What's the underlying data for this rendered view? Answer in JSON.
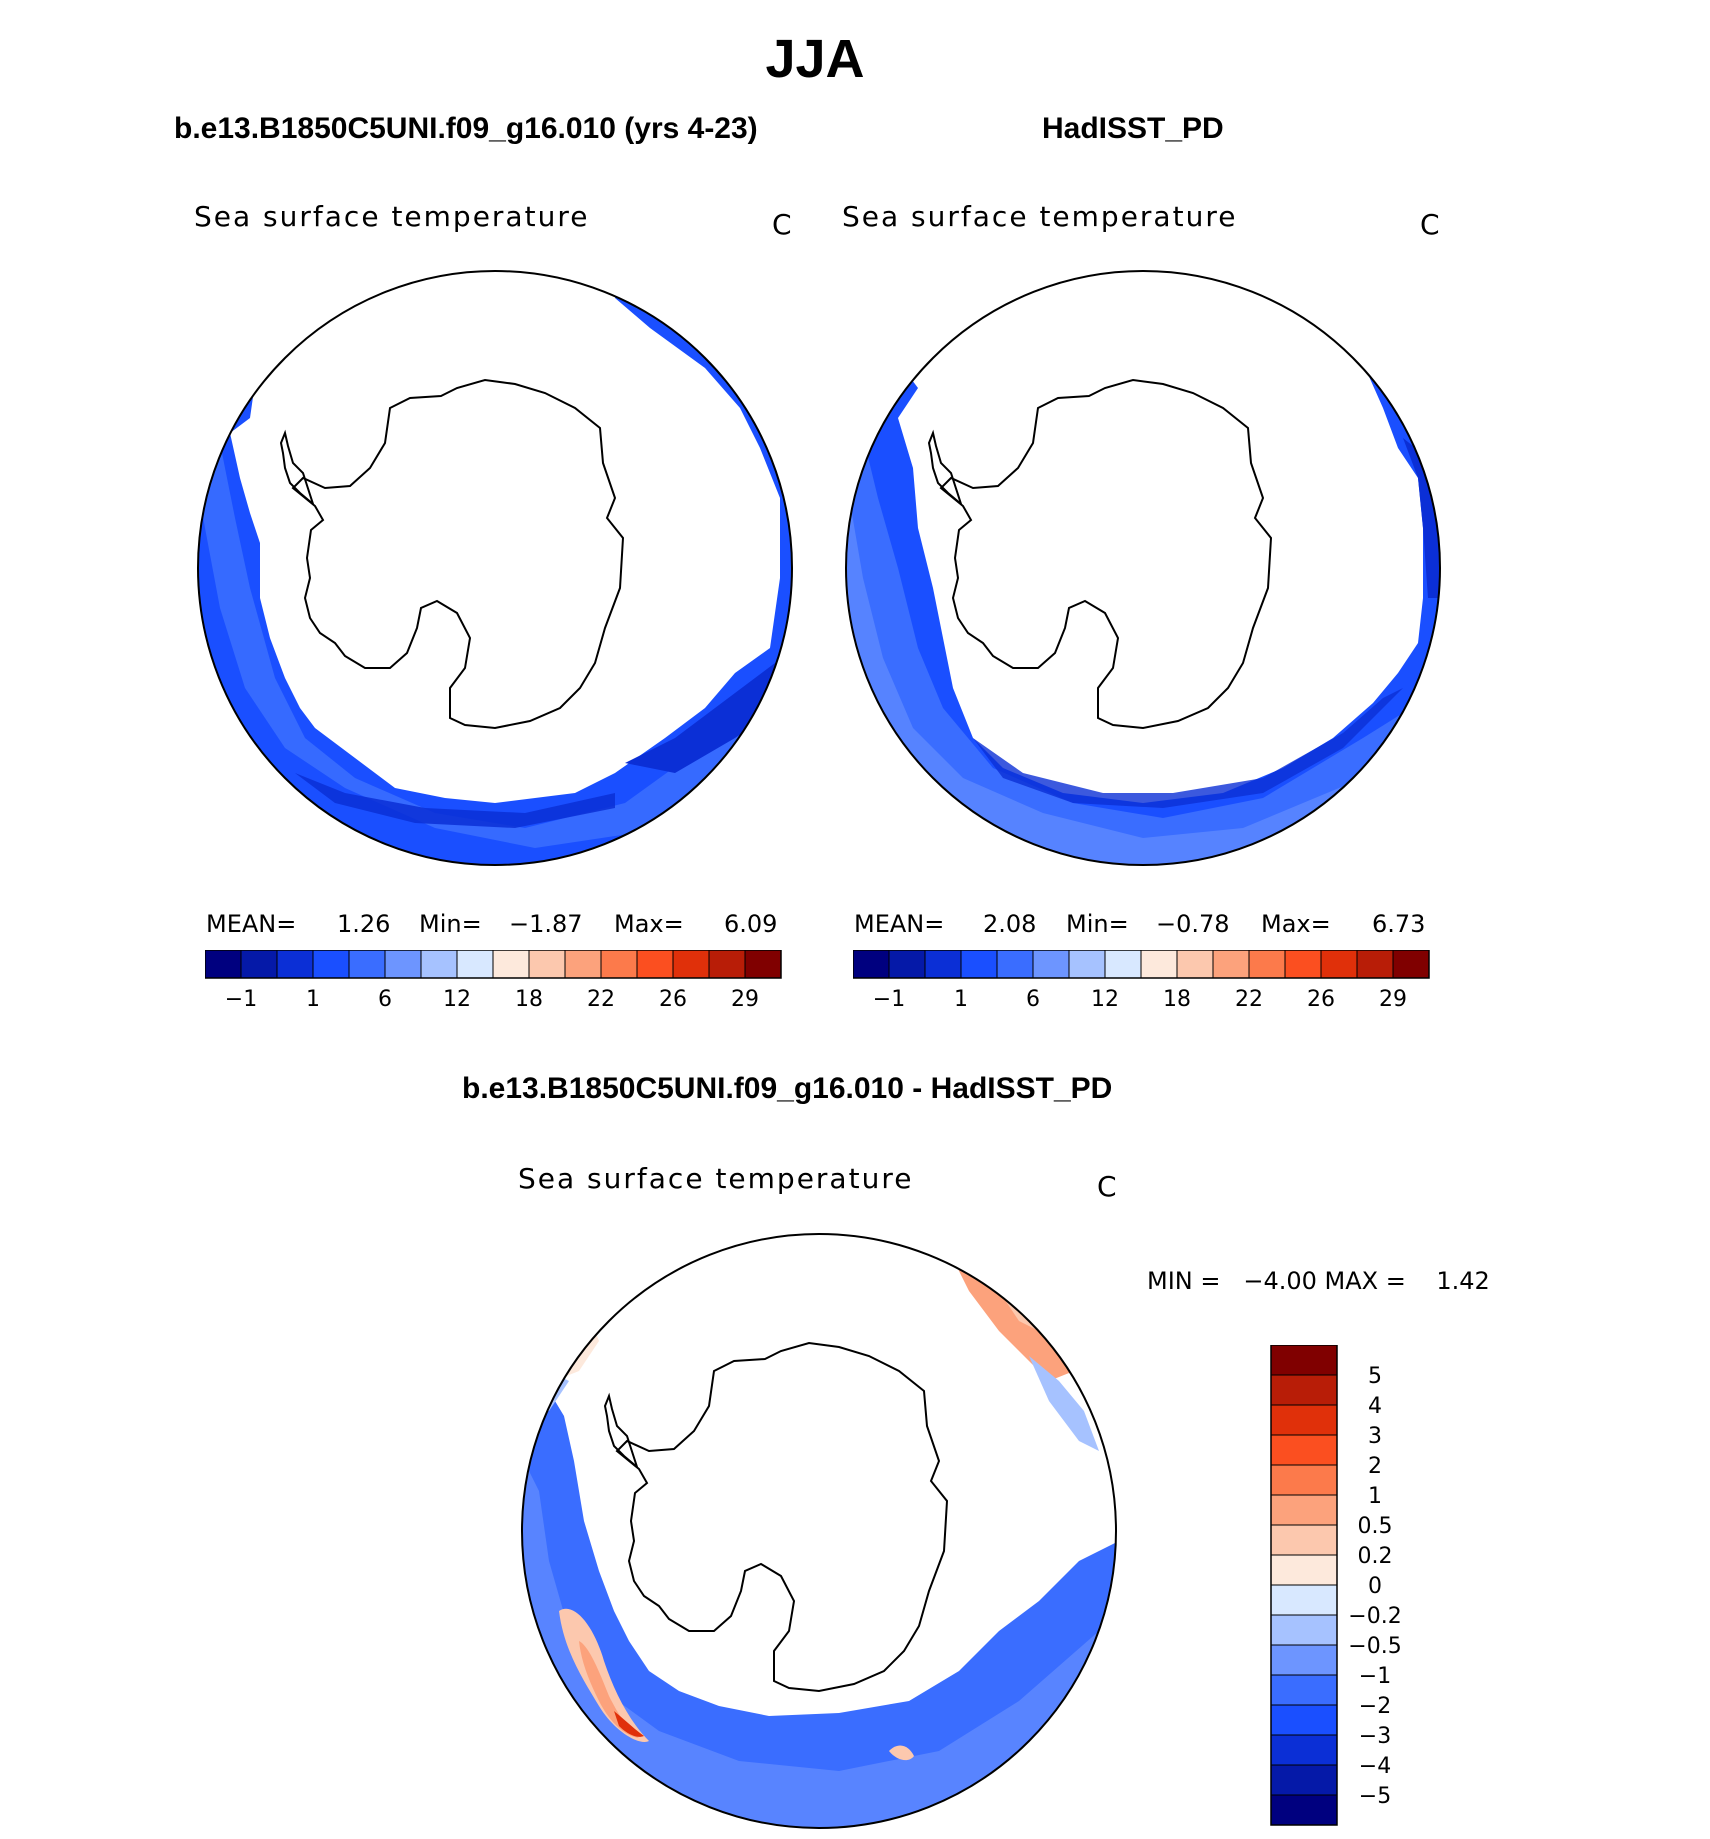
{
  "title": "JJA",
  "panels": [
    {
      "id": "model",
      "header": "b.e13.B1850C5UNI.f09_g16.010 (yrs 4-23)",
      "variable": "Sea surface temperature",
      "units": "C",
      "stats": {
        "mean_label": "MEAN=",
        "mean": "1.26",
        "min_label": "Min=",
        "min": "−1.87",
        "max_label": "Max=",
        "max": "6.09"
      }
    },
    {
      "id": "obs",
      "header": "HadISST_PD",
      "variable": "Sea surface temperature",
      "units": "C",
      "stats": {
        "mean_label": "MEAN=",
        "mean": "2.08",
        "min_label": "Min=",
        "min": "−0.78",
        "max_label": "Max=",
        "max": "6.73"
      }
    }
  ],
  "colorbar_abs": {
    "colors": [
      "#00007f",
      "#0519a8",
      "#0b2fd6",
      "#1a4fff",
      "#3a6dff",
      "#6d95ff",
      "#a6c2ff",
      "#d8e8ff",
      "#fde9dc",
      "#fcc8ae",
      "#fca27c",
      "#fc7a4b",
      "#fb4f20",
      "#e0300a",
      "#b81d07",
      "#800000"
    ],
    "tick_labels": [
      "−1",
      "1",
      "6",
      "12",
      "18",
      "22",
      "26",
      "29"
    ]
  },
  "diff": {
    "header": "b.e13.B1850C5UNI.f09_g16.010 - HadISST_PD",
    "variable": "Sea surface temperature",
    "units": "C",
    "minmax_text": "MIN =   −4.00 MAX =    1.42",
    "colorbar": {
      "colors": [
        "#00007f",
        "#0519a8",
        "#0b2fd6",
        "#1a4fff",
        "#3a6dff",
        "#6d95ff",
        "#a6c2ff",
        "#d8e8ff",
        "#fde9dc",
        "#fcc8ae",
        "#fca27c",
        "#fc7a4b",
        "#fb4f20",
        "#e0300a",
        "#b81d07",
        "#800000"
      ],
      "tick_labels": [
        "−5",
        "−4",
        "−3",
        "−2",
        "−1",
        "−0.5",
        "−0.2",
        "0",
        "0.2",
        "0.5",
        "1",
        "2",
        "3",
        "4",
        "5"
      ]
    }
  }
}
